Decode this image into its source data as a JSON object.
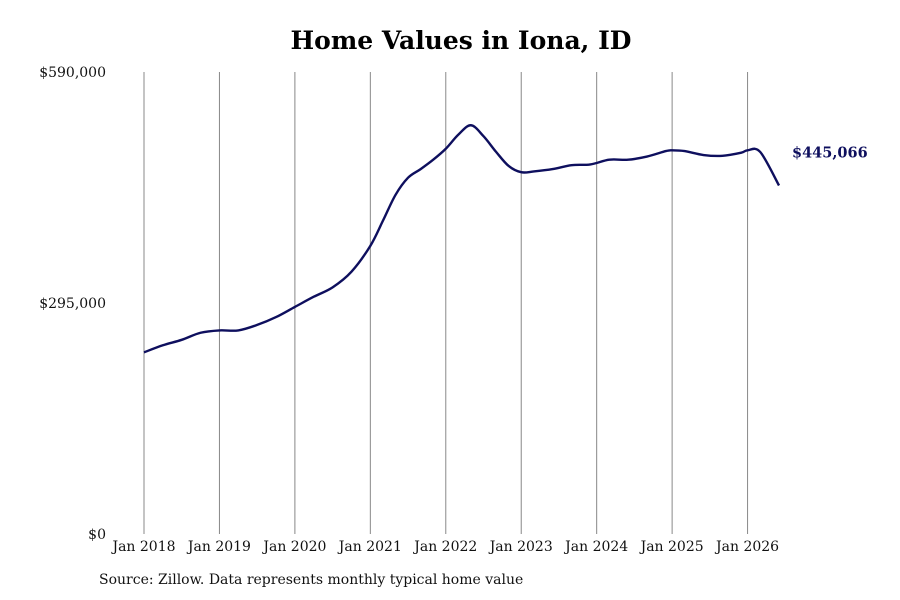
{
  "chart_data": {
    "type": "line",
    "title": "Home Values in Iona, ID",
    "xlabel": "",
    "ylabel": "",
    "x_tick_labels": [
      "Jan 2018",
      "Jan 2019",
      "Jan 2020",
      "Jan 2021",
      "Jan 2022",
      "Jan 2023",
      "Jan 2024",
      "Jan 2025",
      "Jan 2026"
    ],
    "y_tick_labels": [
      "$0",
      "$295,000",
      "$590,000"
    ],
    "y_ticks": [
      0,
      295000,
      590000
    ],
    "ylim": [
      0,
      590000
    ],
    "xlim": [
      "2018-01",
      "2026-06"
    ],
    "grid": "vertical lines at January of each year",
    "line_color": "#0e0f5e",
    "end_label": "$445,066",
    "series": [
      {
        "x": [
          "2018-01",
          "2018-04",
          "2018-07",
          "2018-10",
          "2019-01",
          "2019-04",
          "2019-07",
          "2019-10",
          "2020-01",
          "2020-04",
          "2020-07",
          "2020-10",
          "2021-01",
          "2021-03",
          "2021-05",
          "2021-07",
          "2021-09",
          "2021-11",
          "2022-01",
          "2022-03",
          "2022-05",
          "2022-07",
          "2022-09",
          "2022-11",
          "2023-01",
          "2023-03",
          "2023-06",
          "2023-09",
          "2023-12",
          "2024-03",
          "2024-06",
          "2024-09",
          "2024-12",
          "2025-01",
          "2025-03",
          "2025-06",
          "2025-09",
          "2025-12",
          "2026-01",
          "2026-03",
          "2026-06"
        ],
        "values": [
          232000,
          241000,
          248000,
          257000,
          260000,
          260000,
          267000,
          277000,
          290000,
          303000,
          315000,
          335000,
          368000,
          400000,
          433000,
          455000,
          466000,
          478000,
          492000,
          510000,
          522000,
          508000,
          488000,
          470000,
          462000,
          463000,
          466000,
          471000,
          472000,
          478000,
          478000,
          482000,
          489000,
          490000,
          489000,
          484000,
          483000,
          487000,
          490000,
          488000,
          445066
        ]
      }
    ]
  },
  "source_note": "Source: Zillow. Data represents monthly typical home value"
}
